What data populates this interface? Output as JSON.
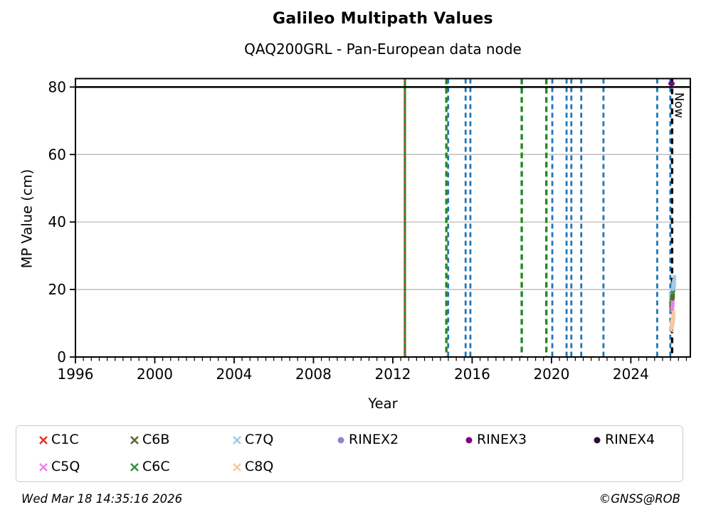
{
  "header": {
    "title": "Galileo Multipath Values",
    "subtitle": "QAQ200GRL - Pan-European data node"
  },
  "footer": {
    "timestamp": "Wed Mar 18 14:35:16 2026",
    "credit": "©GNSS@ROB"
  },
  "chart_data": {
    "type": "scatter",
    "title": "Galileo Multipath Values",
    "subtitle": "QAQ200GRL - Pan-European data node",
    "xlabel": "Year",
    "ylabel": "MP Value (cm)",
    "xlim": [
      1996,
      2027.0
    ],
    "ylim": [
      0,
      82.5
    ],
    "x_major_ticks": [
      1996,
      2000,
      2004,
      2008,
      2012,
      2016,
      2020,
      2024
    ],
    "x_minor_step": 0.4,
    "y_major_ticks": [
      0,
      20,
      40,
      60,
      80
    ],
    "gridlines_y": [
      20,
      40,
      60
    ],
    "grid_color": "#b0b0b0",
    "hline": {
      "y": 80,
      "color": "#000000",
      "width": 2.4
    },
    "event_lines": [
      {
        "year": 2012.61,
        "color": "#228b22",
        "style": "solid",
        "width": 3.2,
        "dash": ""
      },
      {
        "year": 2012.61,
        "color": "#e3362b",
        "style": "dashed",
        "width": 2.2,
        "dash": "4,5"
      },
      {
        "year": 2014.7,
        "color": "#228b22",
        "style": "dashed",
        "width": 3.4,
        "dash": "8,5"
      },
      {
        "year": 2014.79,
        "color": "#1f77b4",
        "style": "dashed",
        "width": 2.8,
        "dash": "7,5"
      },
      {
        "year": 2015.67,
        "color": "#1f77b4",
        "style": "dashed",
        "width": 2.8,
        "dash": "7,5"
      },
      {
        "year": 2015.91,
        "color": "#1f77b4",
        "style": "dashed",
        "width": 2.8,
        "dash": "7,5"
      },
      {
        "year": 2018.5,
        "color": "#228b22",
        "style": "dashed",
        "width": 3.4,
        "dash": "8,5"
      },
      {
        "year": 2019.74,
        "color": "#228b22",
        "style": "dashed",
        "width": 3.4,
        "dash": "8,5"
      },
      {
        "year": 2020.04,
        "color": "#1f77b4",
        "style": "dashed",
        "width": 2.8,
        "dash": "7,5"
      },
      {
        "year": 2020.76,
        "color": "#1f77b4",
        "style": "dashed",
        "width": 2.8,
        "dash": "7,5"
      },
      {
        "year": 2021.0,
        "color": "#1f77b4",
        "style": "dashed",
        "width": 2.8,
        "dash": "7,5"
      },
      {
        "year": 2021.5,
        "color": "#1f77b4",
        "style": "dashed",
        "width": 2.8,
        "dash": "7,5"
      },
      {
        "year": 2022.62,
        "color": "#1f77b4",
        "style": "dashed",
        "width": 2.8,
        "dash": "7,5"
      },
      {
        "year": 2025.33,
        "color": "#1f77b4",
        "style": "dashed",
        "width": 2.8,
        "dash": "7,5"
      },
      {
        "year": 2025.99,
        "color": "#1f77b4",
        "style": "dashed",
        "width": 2.8,
        "dash": "7,5"
      }
    ],
    "now_line": {
      "year": 2026.08,
      "label": "Now",
      "color": "#000000",
      "width": 3.4,
      "dash": "8,6"
    },
    "scatter_clusters": [
      {
        "series": "C1C",
        "color": "#e3362b",
        "from": [
          2026.16,
          21.5
        ],
        "to": [
          2026.0,
          14.2
        ],
        "jx": 0.035,
        "jy": 1.3,
        "n": 16
      },
      {
        "series": "C7Q",
        "color": "#9ecbe8",
        "from": [
          2026.2,
          23.0
        ],
        "to": [
          2026.02,
          16.8
        ],
        "jx": 0.028,
        "jy": 1.1,
        "n": 70
      },
      {
        "series": "C6C",
        "color": "#3f8f3f",
        "from": [
          2026.13,
          19.2
        ],
        "to": [
          2026.03,
          15.2
        ],
        "jx": 0.022,
        "jy": 0.8,
        "n": 22
      },
      {
        "series": "C6B",
        "color": "#556b2f",
        "from": [
          2026.14,
          18.8
        ],
        "to": [
          2026.04,
          15.0
        ],
        "jx": 0.022,
        "jy": 0.8,
        "n": 22
      },
      {
        "series": "C5Q",
        "color": "#ee82ee",
        "from": [
          2026.12,
          16.2
        ],
        "to": [
          2026.06,
          13.9
        ],
        "jx": 0.016,
        "jy": 0.6,
        "n": 12
      },
      {
        "series": "C8Q",
        "color": "#f5c9a4",
        "from": [
          2026.17,
          12.7
        ],
        "to": [
          2026.03,
          8.2
        ],
        "jx": 0.022,
        "jy": 0.9,
        "n": 50
      }
    ],
    "points": [
      {
        "series": "RINEX3",
        "color": "#800080",
        "x": 2026.05,
        "y": 81.0,
        "marker": "dot",
        "rx": 4.5,
        "ry": 3.5
      }
    ],
    "legend_position": "bottom"
  },
  "legend": {
    "items": [
      {
        "label": "C1C",
        "color": "#e3362b",
        "marker": "x",
        "row": 0,
        "col": 0
      },
      {
        "label": "C5Q",
        "color": "#ee82ee",
        "marker": "x",
        "row": 1,
        "col": 0
      },
      {
        "label": "C6B",
        "color": "#556b2f",
        "marker": "x",
        "row": 0,
        "col": 1
      },
      {
        "label": "C6C",
        "color": "#3f8f3f",
        "marker": "x",
        "row": 1,
        "col": 1
      },
      {
        "label": "C7Q",
        "color": "#9ecbe8",
        "marker": "x",
        "row": 0,
        "col": 2
      },
      {
        "label": "C8Q",
        "color": "#f5c9a4",
        "marker": "x",
        "row": 1,
        "col": 2
      },
      {
        "label": "RINEX2",
        "color": "#8787c9",
        "marker": "circle",
        "row": 0,
        "col": 3
      },
      {
        "label": "RINEX3",
        "color": "#800080",
        "marker": "circle",
        "row": 0,
        "col": 4
      },
      {
        "label": "RINEX4",
        "color": "#2e0b3d",
        "marker": "circle",
        "row": 0,
        "col": 5
      }
    ]
  }
}
